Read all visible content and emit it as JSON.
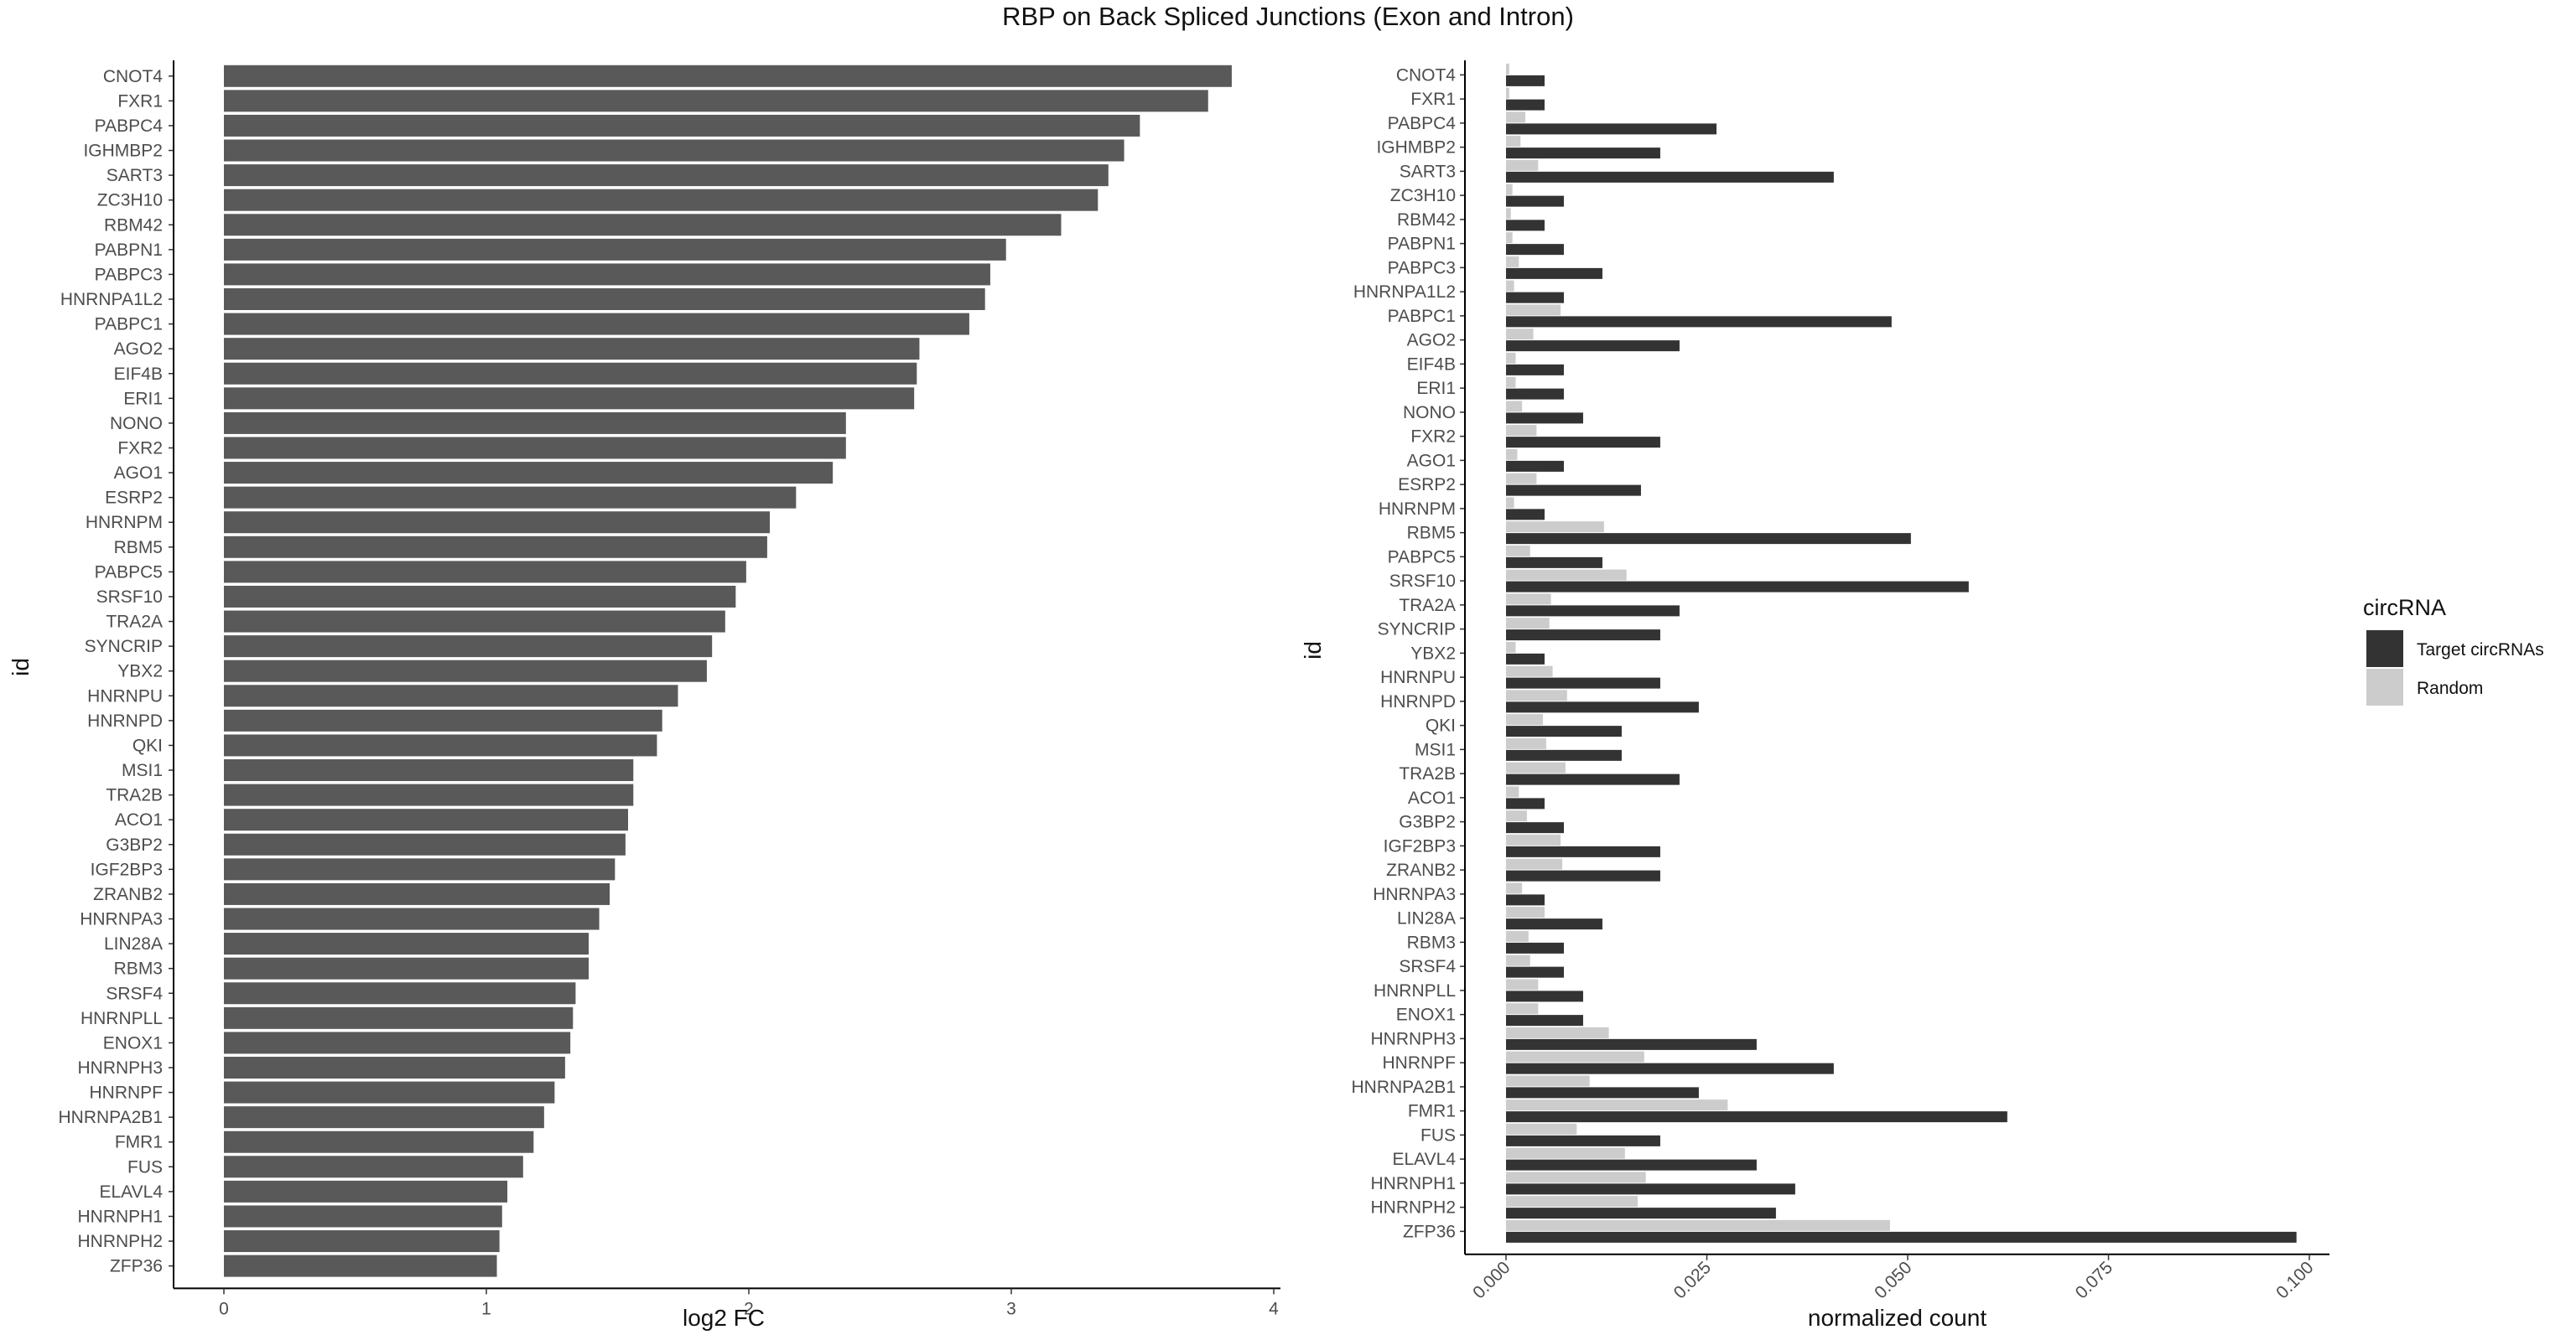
{
  "title": "RBP on Back Spliced Junctions (Exon and Intron)",
  "colors": {
    "bar_left": "#595959",
    "target": "#333333",
    "random": "#cccccc",
    "axis": "#000000",
    "tick_text": "#4d4d4d"
  },
  "chart_data": [
    {
      "type": "bar",
      "orientation": "horizontal",
      "xlabel": "log2 FC",
      "ylabel": "id",
      "xlim": [
        0,
        4
      ],
      "xticks": [
        "0",
        "1",
        "2",
        "3",
        "4"
      ],
      "grid": false,
      "categories": [
        "CNOT4",
        "FXR1",
        "PABPC4",
        "IGHMBP2",
        "SART3",
        "ZC3H10",
        "RBM42",
        "PABPN1",
        "PABPC3",
        "HNRNPA1L2",
        "PABPC1",
        "AGO2",
        "EIF4B",
        "ERI1",
        "NONO",
        "FXR2",
        "AGO1",
        "ESRP2",
        "HNRNPM",
        "RBM5",
        "PABPC5",
        "SRSF10",
        "TRA2A",
        "SYNCRIP",
        "YBX2",
        "HNRNPU",
        "HNRNPD",
        "QKI",
        "MSI1",
        "TRA2B",
        "ACO1",
        "G3BP2",
        "IGF2BP3",
        "ZRANB2",
        "HNRNPA3",
        "LIN28A",
        "RBM3",
        "SRSF4",
        "HNRNPLL",
        "ENOX1",
        "HNRNPH3",
        "HNRNPF",
        "HNRNPA2B1",
        "FMR1",
        "FUS",
        "ELAVL4",
        "HNRNPH1",
        "HNRNPH2",
        "ZFP36"
      ],
      "values": [
        3.84,
        3.75,
        3.49,
        3.43,
        3.37,
        3.33,
        3.19,
        2.98,
        2.92,
        2.9,
        2.84,
        2.65,
        2.64,
        2.63,
        2.37,
        2.37,
        2.32,
        2.18,
        2.08,
        2.07,
        1.99,
        1.95,
        1.91,
        1.86,
        1.84,
        1.73,
        1.67,
        1.65,
        1.56,
        1.56,
        1.54,
        1.53,
        1.49,
        1.47,
        1.43,
        1.39,
        1.39,
        1.34,
        1.33,
        1.32,
        1.3,
        1.26,
        1.22,
        1.18,
        1.14,
        1.08,
        1.06,
        1.05,
        1.04
      ]
    },
    {
      "type": "bar",
      "orientation": "horizontal",
      "xlabel": "normalized count",
      "ylabel": "id",
      "xlim": [
        0,
        0.1
      ],
      "xticks": [
        "0.000",
        "0.025",
        "0.050",
        "0.075",
        "0.100"
      ],
      "grid": false,
      "legend": {
        "title": "circRNA",
        "position": "right"
      },
      "categories": [
        "CNOT4",
        "FXR1",
        "PABPC4",
        "IGHMBP2",
        "SART3",
        "ZC3H10",
        "RBM42",
        "PABPN1",
        "PABPC3",
        "HNRNPA1L2",
        "PABPC1",
        "AGO2",
        "EIF4B",
        "ERI1",
        "NONO",
        "FXR2",
        "AGO1",
        "ESRP2",
        "HNRNPM",
        "RBM5",
        "PABPC5",
        "SRSF10",
        "TRA2A",
        "SYNCRIP",
        "YBX2",
        "HNRNPU",
        "HNRNPD",
        "QKI",
        "MSI1",
        "TRA2B",
        "ACO1",
        "G3BP2",
        "IGF2BP3",
        "ZRANB2",
        "HNRNPA3",
        "LIN28A",
        "RBM3",
        "SRSF4",
        "HNRNPLL",
        "ENOX1",
        "HNRNPH3",
        "HNRNPF",
        "HNRNPA2B1",
        "FMR1",
        "FUS",
        "ELAVL4",
        "HNRNPH1",
        "HNRNPH2",
        "ZFP36"
      ],
      "series": [
        {
          "name": "Target circRNAs",
          "values": [
            0.0048,
            0.0048,
            0.0262,
            0.0192,
            0.0408,
            0.0072,
            0.0048,
            0.0072,
            0.012,
            0.0072,
            0.048,
            0.0216,
            0.0072,
            0.0072,
            0.0096,
            0.0192,
            0.0072,
            0.0168,
            0.0048,
            0.0504,
            0.012,
            0.0576,
            0.0216,
            0.0192,
            0.0048,
            0.0192,
            0.024,
            0.0144,
            0.0144,
            0.0216,
            0.0048,
            0.0072,
            0.0192,
            0.0192,
            0.0048,
            0.012,
            0.0072,
            0.0072,
            0.0096,
            0.0096,
            0.0312,
            0.0408,
            0.024,
            0.0624,
            0.0192,
            0.0312,
            0.036,
            0.0336,
            0.0984
          ]
        },
        {
          "name": "Random",
          "values": [
            0.0004,
            0.0004,
            0.0024,
            0.0018,
            0.004,
            0.0008,
            0.0006,
            0.0008,
            0.0016,
            0.001,
            0.0068,
            0.0034,
            0.0012,
            0.0012,
            0.002,
            0.0038,
            0.0014,
            0.0038,
            0.001,
            0.0122,
            0.003,
            0.015,
            0.0056,
            0.0054,
            0.0012,
            0.0058,
            0.0076,
            0.0046,
            0.005,
            0.0074,
            0.0016,
            0.0026,
            0.0068,
            0.007,
            0.002,
            0.0048,
            0.0028,
            0.003,
            0.004,
            0.004,
            0.0128,
            0.0172,
            0.0104,
            0.0276,
            0.0088,
            0.0148,
            0.0174,
            0.0164,
            0.0478
          ]
        }
      ]
    }
  ]
}
